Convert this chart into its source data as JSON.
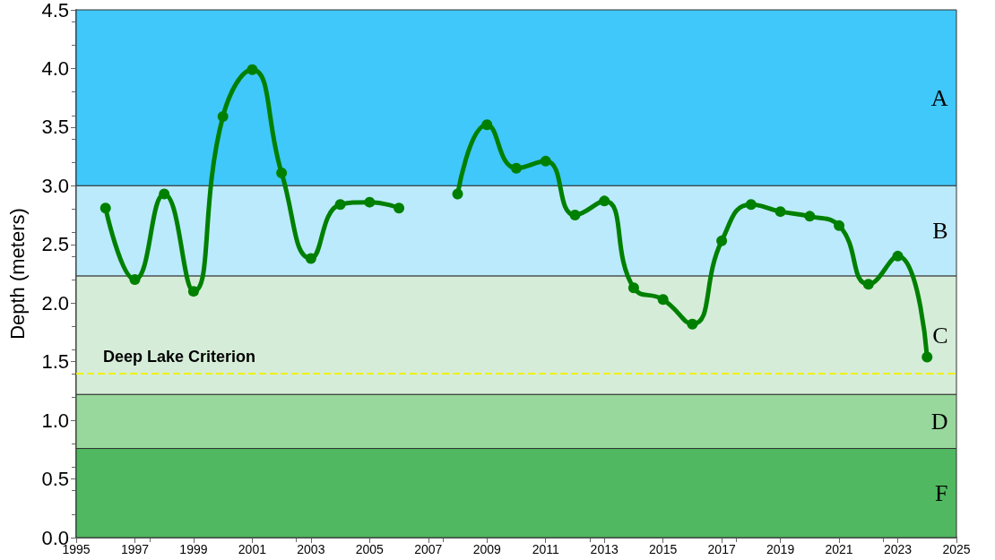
{
  "chart_data": {
    "type": "line",
    "ylabel": "Depth (meters)",
    "x": [
      1996,
      1997,
      1998,
      1999,
      2000,
      2001,
      2002,
      2003,
      2004,
      2005,
      2006,
      2007,
      2008,
      2009,
      2010,
      2011,
      2012,
      2013,
      2014,
      2015,
      2016,
      2017,
      2018,
      2019,
      2020,
      2021,
      2022,
      2023,
      2024
    ],
    "series": [
      {
        "color": "#008000",
        "values": [
          2.81,
          2.2,
          2.93,
          2.1,
          3.59,
          3.99,
          3.11,
          2.38,
          2.84,
          2.86,
          2.81,
          null,
          2.93,
          3.52,
          3.15,
          3.21,
          2.75,
          2.87,
          2.13,
          2.03,
          1.82,
          2.53,
          2.84,
          2.78,
          2.74,
          2.66,
          2.16,
          2.4,
          1.54
        ]
      }
    ],
    "xlim": [
      1995,
      2025
    ],
    "xticks": [
      1995,
      1997,
      1999,
      2001,
      2003,
      2005,
      2007,
      2009,
      2011,
      2013,
      2015,
      2017,
      2019,
      2021,
      2023,
      2025
    ],
    "ylim": [
      0,
      4.5
    ],
    "yticks": [
      {
        "value": 0,
        "label": "0.0"
      },
      0.5,
      {
        "value": 1,
        "label": "1.0"
      },
      1.5,
      {
        "value": 2,
        "label": "2.0"
      },
      2.5,
      {
        "value": 3,
        "label": "3.0"
      },
      3.5,
      {
        "value": 4,
        "label": "4.0"
      },
      4.5
    ],
    "bands": [
      {
        "axis": "y",
        "from": 3,
        "to": 4.5,
        "label": "A",
        "color": "#40c8fa"
      },
      {
        "axis": "y",
        "from": 2.23,
        "to": 3,
        "label": "B",
        "color": "#bbeafc"
      },
      {
        "axis": "y",
        "from": 1.22,
        "to": 2.23,
        "label": "C",
        "color": "#d5edd8"
      },
      {
        "axis": "y",
        "from": 0.76,
        "to": 1.22,
        "label": "D",
        "color": "#98d89c"
      },
      {
        "axis": "y",
        "from": 0,
        "to": 0.76,
        "label": "F",
        "color": "#50b860"
      }
    ],
    "ref_lines": [
      {
        "axis": "y",
        "value": 1.4,
        "label": "Deep Lake Criterion",
        "color": "#f0f000",
        "line_style": "dashed"
      }
    ],
    "marker": "circle",
    "line_style": "solid",
    "grid": false
  }
}
